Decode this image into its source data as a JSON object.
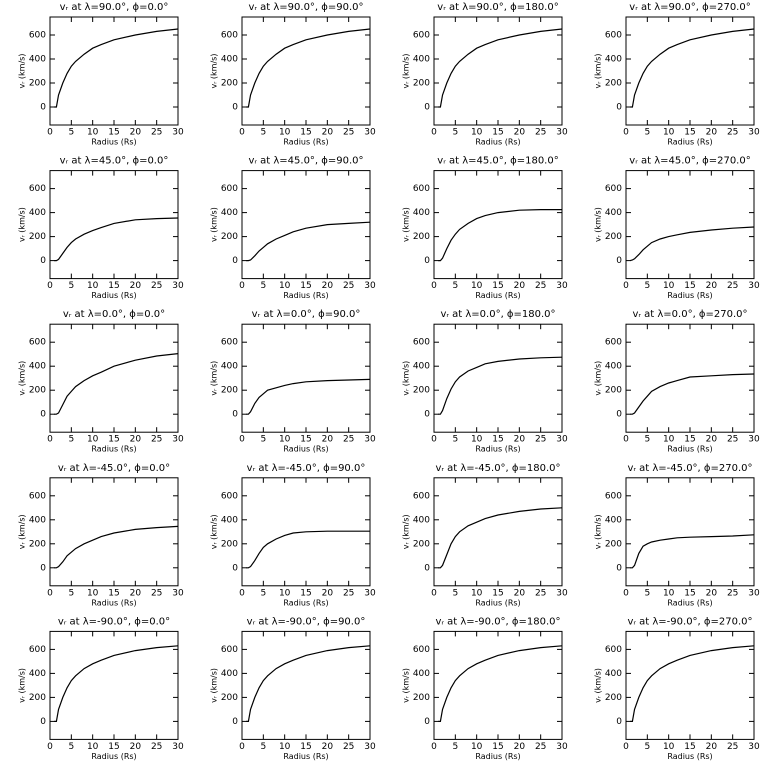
{
  "chart_data": [
    {
      "type": "line",
      "title": "vᵣ at λ=90.0°, ϕ=0.0°",
      "xlabel": "Radius (Rs)",
      "ylabel": "vᵣ (km/s)",
      "x": [
        1,
        1.5,
        2,
        3,
        4,
        5,
        6,
        8,
        10,
        12,
        15,
        20,
        25,
        30
      ],
      "values": [
        0,
        0,
        100,
        200,
        280,
        340,
        380,
        440,
        490,
        520,
        560,
        600,
        630,
        650
      ],
      "xlim": [
        0,
        30
      ],
      "ylim": [
        -150,
        750
      ],
      "xticks": [
        0,
        5,
        10,
        15,
        20,
        25,
        30
      ],
      "yticks": [
        0,
        200,
        400,
        600
      ]
    },
    {
      "type": "line",
      "title": "vᵣ at λ=90.0°, ϕ=90.0°",
      "xlabel": "Radius (Rs)",
      "ylabel": "vᵣ (km/s)",
      "x": [
        1,
        1.5,
        2,
        3,
        4,
        5,
        6,
        8,
        10,
        12,
        15,
        20,
        25,
        30
      ],
      "values": [
        0,
        0,
        100,
        200,
        280,
        340,
        380,
        440,
        490,
        520,
        560,
        600,
        630,
        650
      ],
      "xlim": [
        0,
        30
      ],
      "ylim": [
        -150,
        750
      ],
      "xticks": [
        0,
        5,
        10,
        15,
        20,
        25,
        30
      ],
      "yticks": [
        0,
        200,
        400,
        600
      ]
    },
    {
      "type": "line",
      "title": "vᵣ at λ=90.0°, ϕ=180.0°",
      "xlabel": "Radius (Rs)",
      "ylabel": "vᵣ (km/s)",
      "x": [
        1,
        1.5,
        2,
        3,
        4,
        5,
        6,
        8,
        10,
        12,
        15,
        20,
        25,
        30
      ],
      "values": [
        0,
        0,
        100,
        200,
        280,
        340,
        380,
        440,
        490,
        520,
        560,
        600,
        630,
        650
      ],
      "xlim": [
        0,
        30
      ],
      "ylim": [
        -150,
        750
      ],
      "xticks": [
        0,
        5,
        10,
        15,
        20,
        25,
        30
      ],
      "yticks": [
        0,
        200,
        400,
        600
      ]
    },
    {
      "type": "line",
      "title": "vᵣ at λ=90.0°, ϕ=270.0°",
      "xlabel": "Radius (Rs)",
      "ylabel": "vᵣ (km/s)",
      "x": [
        1,
        1.5,
        2,
        3,
        4,
        5,
        6,
        8,
        10,
        12,
        15,
        20,
        25,
        30
      ],
      "values": [
        0,
        0,
        100,
        200,
        280,
        340,
        380,
        440,
        490,
        520,
        560,
        600,
        630,
        650
      ],
      "xlim": [
        0,
        30
      ],
      "ylim": [
        -150,
        750
      ],
      "xticks": [
        0,
        5,
        10,
        15,
        20,
        25,
        30
      ],
      "yticks": [
        0,
        200,
        400,
        600
      ]
    },
    {
      "type": "line",
      "title": "vᵣ at λ=45.0°, ϕ=0.0°",
      "xlabel": "Radius (Rs)",
      "ylabel": "vᵣ (km/s)",
      "x": [
        1,
        1.5,
        2,
        3,
        4,
        5,
        6,
        8,
        10,
        12,
        15,
        20,
        25,
        30
      ],
      "values": [
        0,
        0,
        10,
        60,
        110,
        150,
        180,
        220,
        250,
        275,
        310,
        340,
        350,
        355
      ],
      "xlim": [
        0,
        30
      ],
      "ylim": [
        -150,
        750
      ],
      "xticks": [
        0,
        5,
        10,
        15,
        20,
        25,
        30
      ],
      "yticks": [
        0,
        200,
        400,
        600
      ]
    },
    {
      "type": "line",
      "title": "vᵣ at λ=45.0°, ϕ=90.0°",
      "xlabel": "Radius (Rs)",
      "ylabel": "vᵣ (km/s)",
      "x": [
        1,
        1.5,
        2,
        3,
        4,
        5,
        6,
        8,
        10,
        12,
        15,
        20,
        25,
        30
      ],
      "values": [
        0,
        0,
        5,
        40,
        80,
        110,
        140,
        180,
        210,
        240,
        270,
        300,
        310,
        320
      ],
      "xlim": [
        0,
        30
      ],
      "ylim": [
        -150,
        750
      ],
      "xticks": [
        0,
        5,
        10,
        15,
        20,
        25,
        30
      ],
      "yticks": [
        0,
        200,
        400,
        600
      ]
    },
    {
      "type": "line",
      "title": "vᵣ at λ=45.0°, ϕ=180.0°",
      "xlabel": "Radius (Rs)",
      "ylabel": "vᵣ (km/s)",
      "x": [
        1,
        1.5,
        2,
        3,
        4,
        5,
        6,
        8,
        10,
        12,
        15,
        20,
        25,
        30
      ],
      "values": [
        0,
        0,
        20,
        100,
        170,
        220,
        260,
        310,
        350,
        375,
        400,
        420,
        425,
        425
      ],
      "xlim": [
        0,
        30
      ],
      "ylim": [
        -150,
        750
      ],
      "xticks": [
        0,
        5,
        10,
        15,
        20,
        25,
        30
      ],
      "yticks": [
        0,
        200,
        400,
        600
      ]
    },
    {
      "type": "line",
      "title": "vᵣ at λ=45.0°, ϕ=270.0°",
      "xlabel": "Radius (Rs)",
      "ylabel": "vᵣ (km/s)",
      "x": [
        1,
        1.5,
        2,
        3,
        4,
        5,
        6,
        8,
        10,
        12,
        15,
        20,
        25,
        30
      ],
      "values": [
        0,
        5,
        15,
        50,
        90,
        120,
        150,
        180,
        200,
        215,
        235,
        255,
        270,
        280
      ],
      "xlim": [
        0,
        30
      ],
      "ylim": [
        -150,
        750
      ],
      "xticks": [
        0,
        5,
        10,
        15,
        20,
        25,
        30
      ],
      "yticks": [
        0,
        200,
        400,
        600
      ]
    },
    {
      "type": "line",
      "title": "vᵣ at λ=0.0°, ϕ=0.0°",
      "xlabel": "Radius (Rs)",
      "ylabel": "vᵣ (km/s)",
      "x": [
        1,
        1.5,
        2,
        3,
        4,
        5,
        6,
        8,
        10,
        12,
        15,
        20,
        25,
        30
      ],
      "values": [
        0,
        0,
        10,
        80,
        150,
        190,
        230,
        280,
        320,
        350,
        400,
        450,
        485,
        505
      ],
      "xlim": [
        0,
        30
      ],
      "ylim": [
        -150,
        750
      ],
      "xticks": [
        0,
        5,
        10,
        15,
        20,
        25,
        30
      ],
      "yticks": [
        0,
        200,
        400,
        600
      ]
    },
    {
      "type": "line",
      "title": "vᵣ at λ=0.0°, ϕ=90.0°",
      "xlabel": "Radius (Rs)",
      "ylabel": "vᵣ (km/s)",
      "x": [
        1,
        1.5,
        2,
        3,
        4,
        5,
        6,
        8,
        10,
        12,
        15,
        20,
        25,
        30
      ],
      "values": [
        0,
        0,
        20,
        90,
        140,
        170,
        200,
        220,
        240,
        255,
        270,
        280,
        285,
        290
      ],
      "xlim": [
        0,
        30
      ],
      "ylim": [
        -150,
        750
      ],
      "xticks": [
        0,
        5,
        10,
        15,
        20,
        25,
        30
      ],
      "yticks": [
        0,
        200,
        400,
        600
      ]
    },
    {
      "type": "line",
      "title": "vᵣ at λ=0.0°, ϕ=180.0°",
      "xlabel": "Radius (Rs)",
      "ylabel": "vᵣ (km/s)",
      "x": [
        1,
        1.5,
        2,
        3,
        4,
        5,
        6,
        8,
        10,
        12,
        15,
        20,
        25,
        30
      ],
      "values": [
        0,
        0,
        30,
        130,
        210,
        270,
        310,
        360,
        390,
        420,
        440,
        460,
        470,
        475
      ],
      "xlim": [
        0,
        30
      ],
      "ylim": [
        -150,
        750
      ],
      "xticks": [
        0,
        5,
        10,
        15,
        20,
        25,
        30
      ],
      "yticks": [
        0,
        200,
        400,
        600
      ]
    },
    {
      "type": "line",
      "title": "vᵣ at λ=0.0°, ϕ=270.0°",
      "xlabel": "Radius (Rs)",
      "ylabel": "vᵣ (km/s)",
      "x": [
        1,
        1.5,
        2,
        3,
        4,
        5,
        6,
        8,
        10,
        12,
        15,
        20,
        25,
        30
      ],
      "values": [
        0,
        0,
        10,
        60,
        110,
        150,
        190,
        230,
        260,
        280,
        310,
        320,
        330,
        335
      ],
      "xlim": [
        0,
        30
      ],
      "ylim": [
        -150,
        750
      ],
      "xticks": [
        0,
        5,
        10,
        15,
        20,
        25,
        30
      ],
      "yticks": [
        0,
        200,
        400,
        600
      ]
    },
    {
      "type": "line",
      "title": "vᵣ at λ=-45.0°, ϕ=0.0°",
      "xlabel": "Radius (Rs)",
      "ylabel": "vᵣ (km/s)",
      "x": [
        1,
        1.5,
        2,
        3,
        4,
        5,
        6,
        8,
        10,
        12,
        15,
        20,
        25,
        30
      ],
      "values": [
        0,
        0,
        10,
        50,
        100,
        130,
        160,
        200,
        230,
        260,
        290,
        320,
        335,
        345
      ],
      "xlim": [
        0,
        30
      ],
      "ylim": [
        -150,
        750
      ],
      "xticks": [
        0,
        5,
        10,
        15,
        20,
        25,
        30
      ],
      "yticks": [
        0,
        200,
        400,
        600
      ]
    },
    {
      "type": "line",
      "title": "vᵣ at λ=-45.0°, ϕ=90.0°",
      "xlabel": "Radius (Rs)",
      "ylabel": "vᵣ (km/s)",
      "x": [
        1,
        1.5,
        2,
        3,
        4,
        5,
        6,
        8,
        10,
        12,
        15,
        20,
        25,
        30
      ],
      "values": [
        0,
        0,
        10,
        60,
        120,
        170,
        200,
        240,
        270,
        290,
        300,
        305,
        305,
        305
      ],
      "xlim": [
        0,
        30
      ],
      "ylim": [
        -150,
        750
      ],
      "xticks": [
        0,
        5,
        10,
        15,
        20,
        25,
        30
      ],
      "yticks": [
        0,
        200,
        400,
        600
      ]
    },
    {
      "type": "line",
      "title": "vᵣ at λ=-45.0°, ϕ=180.0°",
      "xlabel": "Radius (Rs)",
      "ylabel": "vᵣ (km/s)",
      "x": [
        1,
        1.5,
        2,
        3,
        4,
        5,
        6,
        8,
        10,
        12,
        15,
        20,
        25,
        30
      ],
      "values": [
        0,
        0,
        20,
        110,
        200,
        260,
        300,
        350,
        380,
        410,
        440,
        470,
        490,
        500
      ],
      "xlim": [
        0,
        30
      ],
      "ylim": [
        -150,
        750
      ],
      "xticks": [
        0,
        5,
        10,
        15,
        20,
        25,
        30
      ],
      "yticks": [
        0,
        200,
        400,
        600
      ]
    },
    {
      "type": "line",
      "title": "vᵣ at λ=-45.0°, ϕ=270.0°",
      "xlabel": "Radius (Rs)",
      "ylabel": "vᵣ (km/s)",
      "x": [
        1,
        1.5,
        2,
        3,
        4,
        5,
        6,
        8,
        10,
        12,
        15,
        20,
        25,
        30
      ],
      "values": [
        0,
        0,
        20,
        120,
        180,
        200,
        215,
        230,
        240,
        250,
        255,
        260,
        265,
        275
      ],
      "xlim": [
        0,
        30
      ],
      "ylim": [
        -150,
        750
      ],
      "xticks": [
        0,
        5,
        10,
        15,
        20,
        25,
        30
      ],
      "yticks": [
        0,
        200,
        400,
        600
      ]
    },
    {
      "type": "line",
      "title": "vᵣ at λ=-90.0°, ϕ=0.0°",
      "xlabel": "Radius (Rs)",
      "ylabel": "vᵣ (km/s)",
      "x": [
        1,
        1.5,
        2,
        3,
        4,
        5,
        6,
        8,
        10,
        12,
        15,
        20,
        25,
        30
      ],
      "values": [
        0,
        0,
        100,
        200,
        280,
        340,
        380,
        440,
        480,
        510,
        550,
        590,
        615,
        630
      ],
      "xlim": [
        0,
        30
      ],
      "ylim": [
        -150,
        750
      ],
      "xticks": [
        0,
        5,
        10,
        15,
        20,
        25,
        30
      ],
      "yticks": [
        0,
        200,
        400,
        600
      ]
    },
    {
      "type": "line",
      "title": "vᵣ at λ=-90.0°, ϕ=90.0°",
      "xlabel": "Radius (Rs)",
      "ylabel": "vᵣ (km/s)",
      "x": [
        1,
        1.5,
        2,
        3,
        4,
        5,
        6,
        8,
        10,
        12,
        15,
        20,
        25,
        30
      ],
      "values": [
        0,
        0,
        100,
        200,
        280,
        340,
        380,
        440,
        480,
        510,
        550,
        590,
        615,
        630
      ],
      "xlim": [
        0,
        30
      ],
      "ylim": [
        -150,
        750
      ],
      "xticks": [
        0,
        5,
        10,
        15,
        20,
        25,
        30
      ],
      "yticks": [
        0,
        200,
        400,
        600
      ]
    },
    {
      "type": "line",
      "title": "vᵣ at λ=-90.0°, ϕ=180.0°",
      "xlabel": "Radius (Rs)",
      "ylabel": "vᵣ (km/s)",
      "x": [
        1,
        1.5,
        2,
        3,
        4,
        5,
        6,
        8,
        10,
        12,
        15,
        20,
        25,
        30
      ],
      "values": [
        0,
        0,
        100,
        200,
        280,
        340,
        380,
        440,
        480,
        510,
        550,
        590,
        615,
        630
      ],
      "xlim": [
        0,
        30
      ],
      "ylim": [
        -150,
        750
      ],
      "xticks": [
        0,
        5,
        10,
        15,
        20,
        25,
        30
      ],
      "yticks": [
        0,
        200,
        400,
        600
      ]
    },
    {
      "type": "line",
      "title": "vᵣ at λ=-90.0°, ϕ=270.0°",
      "xlabel": "Radius (Rs)",
      "ylabel": "vᵣ (km/s)",
      "x": [
        1,
        1.5,
        2,
        3,
        4,
        5,
        6,
        8,
        10,
        12,
        15,
        20,
        25,
        30
      ],
      "values": [
        0,
        0,
        100,
        200,
        280,
        340,
        380,
        440,
        480,
        510,
        550,
        590,
        615,
        630
      ],
      "xlim": [
        0,
        30
      ],
      "ylim": [
        -150,
        750
      ],
      "xticks": [
        0,
        5,
        10,
        15,
        20,
        25,
        30
      ],
      "yticks": [
        0,
        200,
        400,
        600
      ]
    }
  ]
}
